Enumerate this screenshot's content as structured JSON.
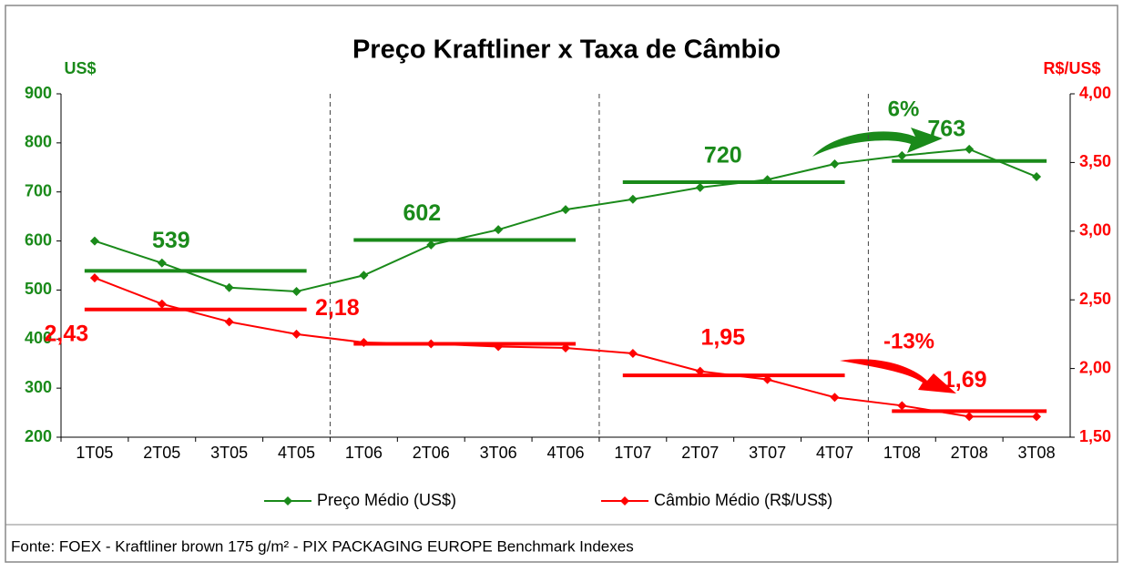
{
  "chart_data": {
    "type": "line",
    "title": "Preço Kraftliner x Taxa de Câmbio",
    "y_label": "US$",
    "y2_label": "R$/US$",
    "categories": [
      "1T05",
      "2T05",
      "3T05",
      "4T05",
      "1T06",
      "2T06",
      "3T06",
      "4T06",
      "1T07",
      "2T07",
      "3T07",
      "4T07",
      "1T08",
      "2T08",
      "3T08"
    ],
    "ylim": [
      200,
      900
    ],
    "yticks": [
      200,
      300,
      400,
      500,
      600,
      700,
      800,
      900
    ],
    "y2lim": [
      1.5,
      4.0
    ],
    "y2ticks": [
      {
        "value": 1.5,
        "label": "1,50"
      },
      {
        "value": 2.0,
        "label": "2,00"
      },
      {
        "value": 2.5,
        "label": "2,50"
      },
      {
        "value": 3.0,
        "label": "3,00"
      },
      {
        "value": 3.5,
        "label": "3,50"
      },
      {
        "value": 4.0,
        "label": "4,00"
      }
    ],
    "series": [
      {
        "name": "Preço Médio (US$)",
        "color": "#1a8a1a",
        "axis": "y",
        "values": [
          600,
          555,
          505,
          497,
          530,
          592,
          623,
          664,
          685,
          709,
          725,
          757,
          774,
          787,
          731
        ],
        "averages": [
          539,
          602,
          720,
          763
        ]
      },
      {
        "name": "Câmbio Médio (R$/US$)",
        "color": "#ff0000",
        "axis": "y2",
        "values": [
          2.66,
          2.47,
          2.34,
          2.25,
          2.19,
          2.18,
          2.16,
          2.15,
          2.11,
          1.98,
          1.92,
          1.79,
          1.73,
          1.65,
          1.65
        ],
        "averages": [
          2.43,
          2.18,
          1.95,
          1.69
        ],
        "average_labels": [
          "2,43",
          "2,18",
          "1,95",
          "1,69"
        ]
      }
    ],
    "annotations": [
      "6%",
      "-13%"
    ],
    "source": "Fonte: FOEX - Kraftliner brown 175 g/m² - PIX PACKAGING EUROPE Benchmark Indexes"
  }
}
